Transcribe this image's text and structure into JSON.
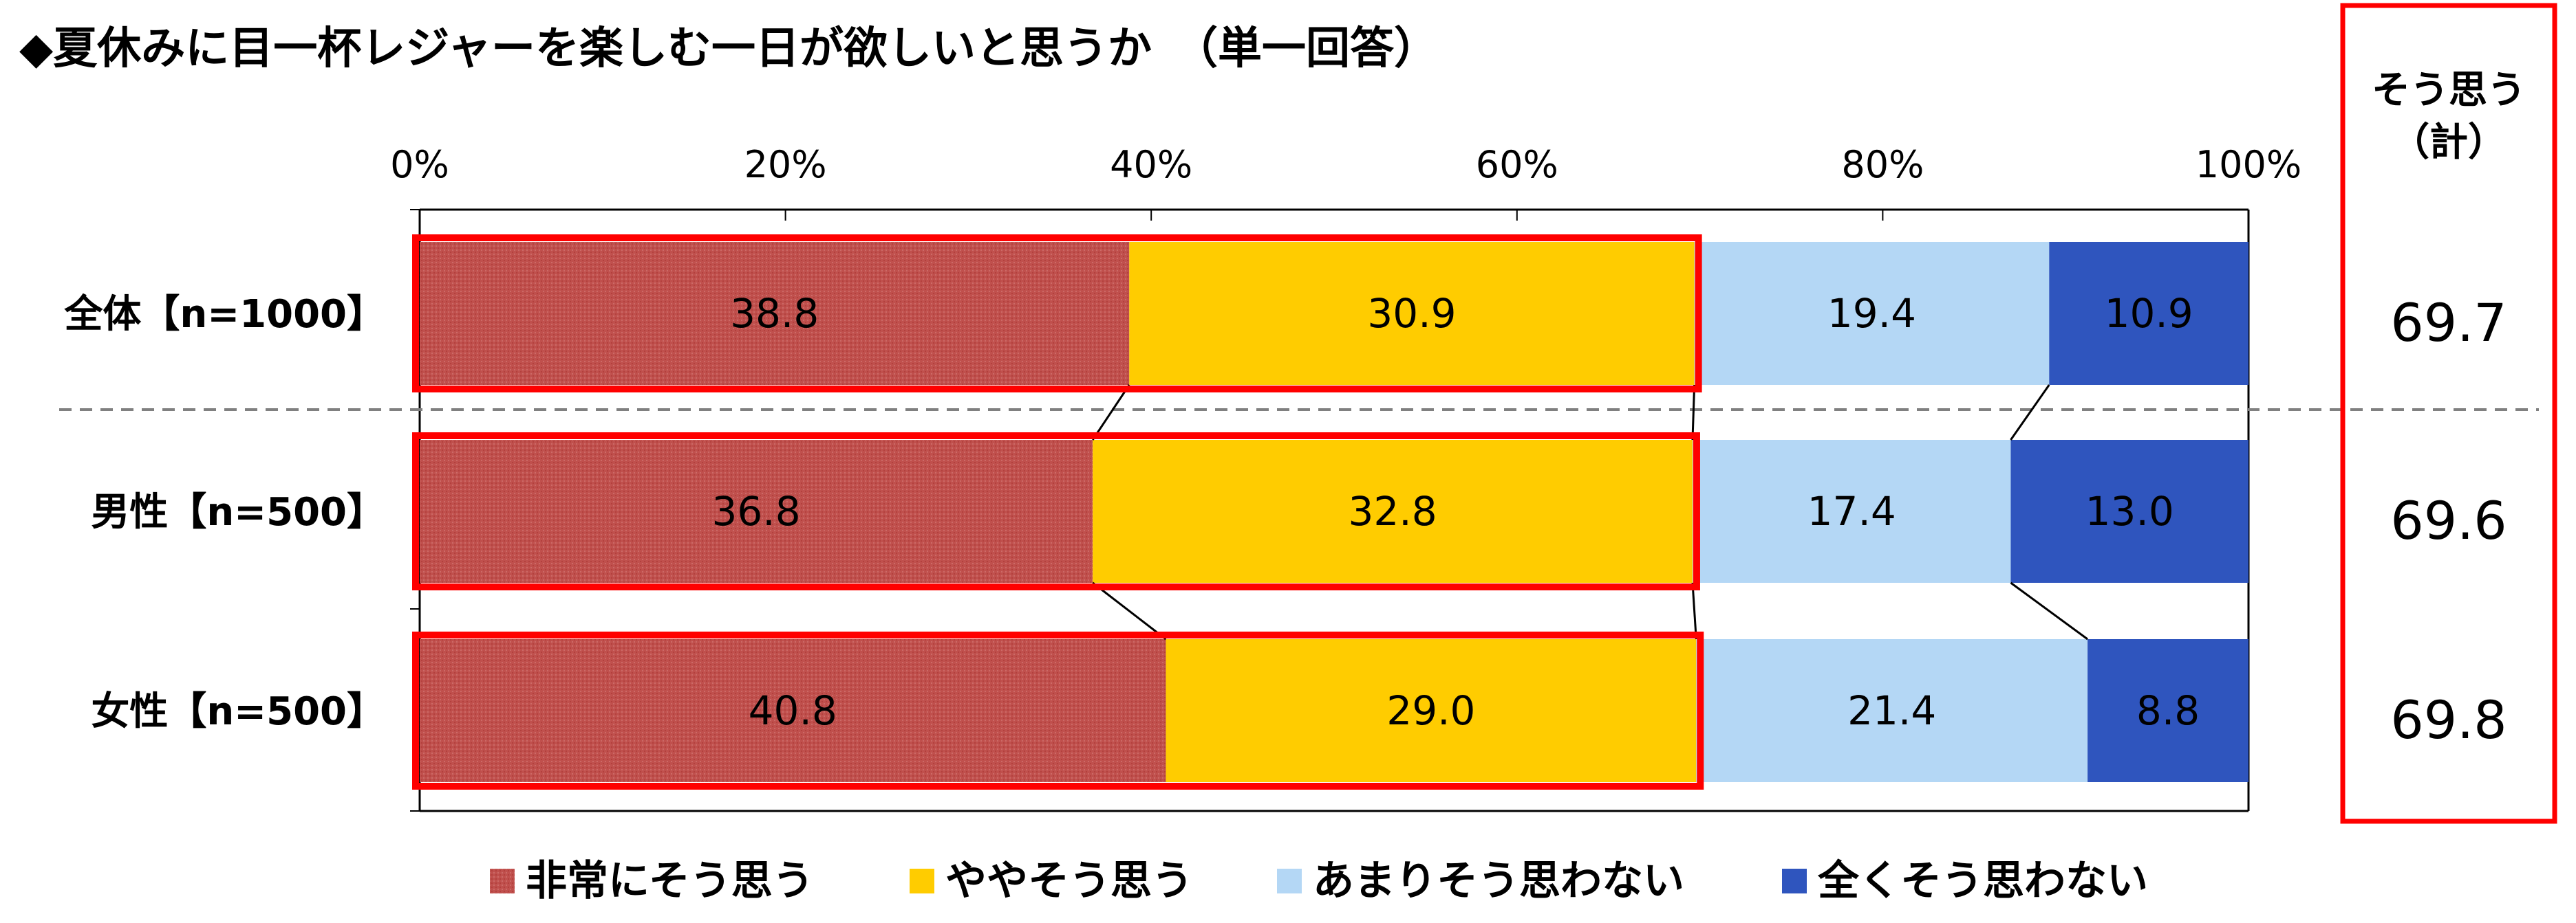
{
  "chart_data": {
    "type": "bar",
    "stacked": true,
    "orientation": "horizontal",
    "percent_scale": true,
    "title": "◆夏休みに目一杯レジャーを楽しむ一日が欲しいと思うか　（単一回答）",
    "categories": [
      "全体【n=1000】",
      "男性【n=500】",
      "女性【n=500】"
    ],
    "series": [
      {
        "name": "非常にそう思う",
        "values": [
          38.8,
          36.8,
          40.8
        ],
        "labels": [
          "38.8",
          "36.8",
          "40.8"
        ],
        "color": "#C0504D"
      },
      {
        "name": "ややそう思う",
        "values": [
          30.9,
          32.8,
          29.0
        ],
        "labels": [
          "30.9",
          "32.8",
          "29.0"
        ],
        "color": "#FFCC00"
      },
      {
        "name": "あまりそう思わない",
        "values": [
          19.4,
          17.4,
          21.4
        ],
        "labels": [
          "19.4",
          "17.4",
          "21.4"
        ],
        "color": "#B4D7F5"
      },
      {
        "name": "全くそう思わない",
        "values": [
          10.9,
          13.0,
          8.8
        ],
        "labels": [
          "10.9",
          "13.0",
          "8.8"
        ],
        "color": "#2F55BE"
      }
    ],
    "xlim": [
      0,
      100
    ],
    "x_ticks": [
      "0%",
      "20%",
      "40%",
      "60%",
      "80%",
      "100%"
    ],
    "legend_position": "bottom",
    "summary": {
      "header": [
        "そう思う",
        "（計）"
      ],
      "values": [
        "69.7",
        "69.6",
        "69.8"
      ]
    },
    "highlight_color": "#FF0000"
  }
}
